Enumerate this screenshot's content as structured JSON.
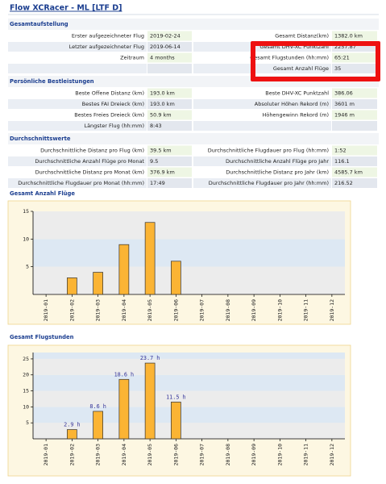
{
  "header": {
    "title": "Flow XCRacer - ML [LTF D]"
  },
  "sections": [
    {
      "title": "Gesamtaufstellung",
      "rows": [
        [
          "Erster aufgezeichneter Flug",
          "2019-02-24",
          "Gesamt Distanz(km)",
          "1382.0 km"
        ],
        [
          "Letzter aufgezeichneter Flug",
          "2019-06-14",
          "Gesamt DHV-XC Punktzahl",
          "2257.87"
        ],
        [
          "Zeitraum",
          "4 months",
          "Gesamt Flugstunden (hh:mm)",
          "65:21"
        ],
        [
          null,
          null,
          "Gesamt Anzahl Flüge",
          "35"
        ]
      ]
    },
    {
      "title": "Persönliche Bestleistungen",
      "rows": [
        [
          "Beste Offene Distanz (km)",
          "193.0 km",
          "Beste DHV-XC Punktzahl",
          "386.06"
        ],
        [
          "Bestes FAI Dreieck (km)",
          "193.0 km",
          "Absoluter Höhen Rekord (m)",
          "3601 m"
        ],
        [
          "Bestes Freies Dreieck (km)",
          "50.9 km",
          "Höhengewinn Rekord (m)",
          "1946 m"
        ],
        [
          "Längster Flug (hh:mm)",
          "8:43",
          null,
          null
        ]
      ]
    },
    {
      "title": "Durchschnittswerte",
      "rows": [
        [
          "Durchschnittliche Distanz pro Flug (km)",
          "39.5 km",
          "Durchschnittliche Flugdauer pro Flug (hh:mm)",
          "1:52"
        ],
        [
          "Durchschnittliche Anzahl Flüge pro Monat",
          "9.5",
          "Durchschnittliche Anzahl Flüge pro Jahr",
          "116.1"
        ],
        [
          "Durchschnittliche Distanz pro Monat (km)",
          "376.9 km",
          "Durchschnittliche Distanz pro Jahr (km)",
          "4585.7 km"
        ],
        [
          "Durchschnittliche Flugdauer pro Monat (hh:mm)",
          "17:49",
          "Durchschnittliche Flugdauer pro Jahr (hh:mm)",
          "216.52"
        ]
      ]
    }
  ],
  "chart_data": [
    {
      "type": "bar",
      "title": "Gesamt Anzahl Flüge",
      "categories": [
        "2019-01",
        "2019-02",
        "2019-03",
        "2019-04",
        "2019-05",
        "2019-06",
        "2019-07",
        "2019-08",
        "2019-09",
        "2019-10",
        "2019-11",
        "2019-12"
      ],
      "values": [
        0,
        3,
        4,
        9,
        13,
        6,
        0,
        0,
        0,
        0,
        0,
        0
      ],
      "color": "#fbb434",
      "ylim": [
        0,
        15
      ],
      "yticks": [
        5,
        10,
        15
      ]
    },
    {
      "type": "bar",
      "title": "Gesamt Flugstunden",
      "categories": [
        "2019-01",
        "2019-02",
        "2019-03",
        "2019-04",
        "2019-05",
        "2019-06",
        "2019-07",
        "2019-08",
        "2019-09",
        "2019-10",
        "2019-11",
        "2019-12"
      ],
      "values": [
        0,
        2.9,
        8.6,
        18.6,
        23.7,
        11.5,
        0,
        0,
        0,
        0,
        0,
        0
      ],
      "value_labels": [
        null,
        "2.9 h",
        "8.6 h",
        "18.6 h",
        "23.7 h",
        "11.5 h",
        null,
        null,
        null,
        null,
        null,
        null
      ],
      "color": "#fbb434",
      "ylim": [
        0,
        27
      ],
      "yticks": [
        5,
        10,
        15,
        20,
        25
      ]
    }
  ]
}
